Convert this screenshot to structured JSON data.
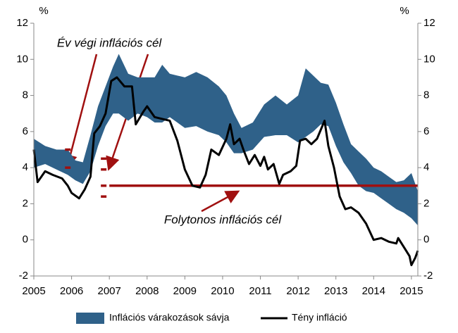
{
  "chart_data": {
    "type": "band-line",
    "y_unit_left": "%",
    "y_unit_right": "%",
    "xlim": [
      2005,
      2015.17
    ],
    "xticks": [
      2005,
      2006,
      2007,
      2008,
      2009,
      2010,
      2011,
      2012,
      2013,
      2014,
      2015
    ],
    "ylim": [
      -2,
      12
    ],
    "yticks": [
      -2,
      0,
      2,
      4,
      6,
      8,
      10,
      12
    ],
    "y2lim": [
      -2,
      12
    ],
    "y2ticks": [
      -2,
      0,
      2,
      4,
      6,
      8,
      10,
      12
    ],
    "annotations": [
      "Év végi inflációs cél",
      "Folytonos inflációs cél"
    ],
    "series": [
      {
        "name": "Inflációs várakozások sávja",
        "color": "#2f6189",
        "x": [
          2005.0,
          2005.3,
          2005.6,
          2005.9,
          2006.1,
          2006.3,
          2006.5,
          2006.7,
          2006.9,
          2007.1,
          2007.25,
          2007.5,
          2007.75,
          2008.0,
          2008.2,
          2008.4,
          2008.6,
          2008.8,
          2009.0,
          2009.3,
          2009.6,
          2009.9,
          2010.1,
          2010.3,
          2010.5,
          2010.8,
          2011.1,
          2011.4,
          2011.7,
          2012.0,
          2012.2,
          2012.4,
          2012.6,
          2012.8,
          2013.0,
          2013.2,
          2013.4,
          2013.6,
          2013.8,
          2014.0,
          2014.2,
          2014.4,
          2014.6,
          2014.8,
          2015.0,
          2015.17
        ],
        "lower": [
          4.0,
          4.2,
          3.9,
          3.6,
          3.3,
          3.1,
          3.8,
          5.2,
          6.3,
          7.0,
          7.0,
          6.6,
          7.0,
          6.8,
          6.5,
          6.5,
          6.8,
          6.5,
          6.2,
          6.3,
          6.0,
          5.8,
          5.4,
          4.8,
          4.8,
          5.0,
          5.7,
          5.8,
          5.8,
          5.4,
          5.7,
          6.0,
          6.4,
          6.3,
          5.2,
          4.3,
          3.7,
          3.0,
          2.7,
          2.6,
          2.3,
          2.0,
          1.7,
          1.5,
          1.2,
          0.8
        ],
        "upper": [
          5.6,
          5.2,
          5.0,
          5.0,
          4.4,
          4.3,
          5.8,
          7.4,
          8.5,
          9.6,
          10.3,
          9.2,
          9.0,
          9.0,
          9.0,
          9.7,
          9.2,
          9.1,
          9.0,
          9.3,
          9.0,
          8.5,
          8.0,
          7.0,
          6.2,
          6.5,
          7.5,
          8.0,
          7.5,
          8.0,
          9.5,
          9.1,
          8.7,
          8.6,
          7.6,
          6.4,
          5.3,
          4.9,
          4.5,
          4.0,
          3.8,
          3.5,
          3.2,
          3.3,
          3.7,
          2.7
        ]
      },
      {
        "name": "Tény infláció",
        "color": "#000000",
        "x": [
          2005.0,
          2005.1,
          2005.3,
          2005.5,
          2005.75,
          2005.9,
          2006.0,
          2006.2,
          2006.35,
          2006.5,
          2006.6,
          2006.75,
          2006.9,
          2007.05,
          2007.2,
          2007.4,
          2007.6,
          2007.7,
          2007.9,
          2008.0,
          2008.2,
          2008.4,
          2008.6,
          2008.8,
          2009.0,
          2009.2,
          2009.4,
          2009.55,
          2009.7,
          2009.9,
          2010.1,
          2010.2,
          2010.3,
          2010.45,
          2010.55,
          2010.7,
          2010.85,
          2011.0,
          2011.1,
          2011.2,
          2011.35,
          2011.5,
          2011.6,
          2011.8,
          2011.95,
          2012.05,
          2012.2,
          2012.35,
          2012.5,
          2012.7,
          2012.8,
          2012.95,
          2013.1,
          2013.25,
          2013.4,
          2013.6,
          2013.8,
          2014.0,
          2014.2,
          2014.4,
          2014.6,
          2014.65,
          2014.8,
          2014.95,
          2015.0,
          2015.1,
          2015.17
        ],
        "values": [
          5.0,
          3.2,
          3.8,
          3.6,
          3.4,
          3.0,
          2.6,
          2.3,
          2.8,
          3.5,
          5.9,
          6.3,
          7.0,
          8.8,
          9.0,
          8.5,
          8.5,
          6.4,
          7.1,
          7.4,
          6.8,
          6.7,
          6.6,
          5.5,
          3.9,
          3.0,
          2.9,
          3.6,
          5.0,
          4.7,
          5.6,
          6.4,
          5.3,
          5.6,
          5.0,
          4.2,
          4.7,
          4.1,
          4.6,
          3.9,
          4.2,
          3.1,
          3.6,
          3.8,
          4.1,
          5.5,
          5.6,
          5.3,
          5.6,
          6.6,
          5.2,
          4.0,
          2.4,
          1.7,
          1.8,
          1.5,
          0.9,
          0.0,
          0.1,
          -0.1,
          -0.2,
          0.1,
          -0.4,
          -0.9,
          -1.4,
          -1.0,
          -0.6
        ]
      }
    ],
    "year_end_targets": {
      "color": "#a01010",
      "x": [
        2005.9,
        2005.9,
        2006.85,
        2006.85,
        2006.85,
        2006.85
      ],
      "values": [
        5.0,
        4.0,
        4.5,
        3.9,
        3.0,
        2.4
      ]
    },
    "continuous_target": {
      "color": "#a01010",
      "x": [
        2007.0,
        2015.17
      ],
      "values": [
        3,
        3
      ]
    }
  }
}
